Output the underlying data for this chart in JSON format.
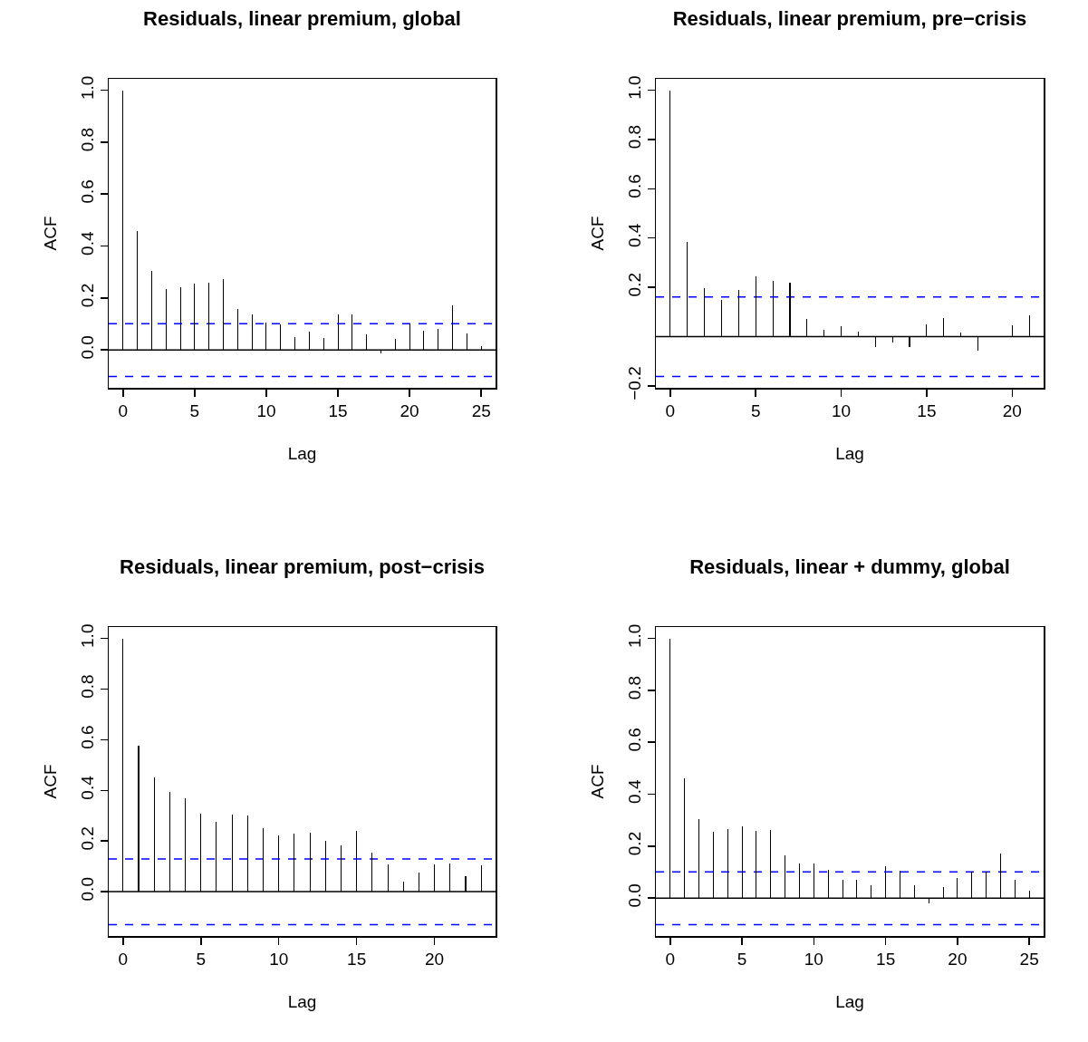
{
  "chart_data": [
    {
      "type": "bar",
      "title": "Residuals, linear premium, global",
      "xlabel": "Lag",
      "ylabel": "ACF",
      "color": "#000000",
      "x": [
        0,
        1,
        2,
        3,
        4,
        5,
        6,
        7,
        8,
        9,
        10,
        11,
        12,
        13,
        14,
        15,
        16,
        17,
        18,
        19,
        20,
        21,
        22,
        23,
        24,
        25
      ],
      "values": [
        1.0,
        0.456,
        0.304,
        0.235,
        0.242,
        0.254,
        0.258,
        0.274,
        0.157,
        0.136,
        0.107,
        0.098,
        0.049,
        0.072,
        0.047,
        0.137,
        0.135,
        0.061,
        -0.013,
        0.044,
        0.101,
        0.075,
        0.08,
        0.172,
        0.063,
        0.013
      ],
      "xlim": [
        -1,
        26
      ],
      "ylim": [
        -0.146,
        1.044
      ],
      "xticks": [
        0,
        5,
        10,
        15,
        20,
        25
      ],
      "yticks": [
        {
          "value": 0,
          "label": "0.0"
        },
        0.2,
        0.4,
        0.6,
        0.8,
        {
          "value": 1,
          "label": "1.0"
        }
      ],
      "ref_lines": [
        {
          "axis": "y",
          "value": 0,
          "color": "#000000",
          "line_style": "solid"
        },
        {
          "axis": "y",
          "value": 0.101,
          "color": "#0000ff",
          "line_style": "dashed"
        },
        {
          "axis": "y",
          "value": -0.102,
          "color": "#0000ff",
          "line_style": "dashed"
        }
      ],
      "grid": false
    },
    {
      "type": "bar",
      "title": "Residuals, linear premium, pre−crisis",
      "xlabel": "Lag",
      "ylabel": "ACF",
      "color": "#000000",
      "x": [
        0,
        1,
        2,
        3,
        4,
        5,
        6,
        7,
        8,
        9,
        10,
        11,
        12,
        13,
        14,
        15,
        16,
        17,
        18,
        19,
        20,
        21
      ],
      "values": [
        1.0,
        0.384,
        0.196,
        0.148,
        0.189,
        0.244,
        0.227,
        0.217,
        0.071,
        0.027,
        0.042,
        0.02,
        -0.044,
        -0.023,
        -0.043,
        0.049,
        0.074,
        0.016,
        -0.056,
        null,
        0.044,
        0.088
      ],
      "xlim": [
        -0.84,
        21.84
      ],
      "ylim": [
        -0.208,
        1.046
      ],
      "xticks": [
        0,
        5,
        10,
        15,
        20
      ],
      "yticks": [
        {
          "value": -0.2,
          "label": "−0.2"
        },
        0.2,
        0.4,
        0.6,
        0.8,
        {
          "value": 1,
          "label": "1.0"
        }
      ],
      "ref_lines": [
        {
          "axis": "y",
          "value": 0,
          "color": "#000000",
          "line_style": "solid"
        },
        {
          "axis": "y",
          "value": 0.161,
          "color": "#0000ff",
          "line_style": "dashed"
        },
        {
          "axis": "y",
          "value": -0.162,
          "color": "#0000ff",
          "line_style": "dashed"
        }
      ],
      "grid": false
    },
    {
      "type": "bar",
      "title": "Residuals, linear premium, post−crisis",
      "xlabel": "Lag",
      "ylabel": "ACF",
      "color": "#000000",
      "x": [
        0,
        1,
        2,
        3,
        4,
        5,
        6,
        7,
        8,
        9,
        10,
        11,
        12,
        13,
        14,
        15,
        16,
        17,
        18,
        19,
        20,
        21,
        22,
        23
      ],
      "values": [
        1.0,
        0.578,
        0.45,
        0.395,
        0.368,
        0.308,
        0.275,
        0.305,
        0.3,
        0.25,
        0.222,
        0.228,
        0.232,
        0.202,
        0.182,
        0.239,
        0.153,
        0.108,
        0.039,
        0.076,
        0.108,
        0.11,
        0.061,
        0.105
      ],
      "xlim": [
        -0.92,
        23.92
      ],
      "ylim": [
        -0.175,
        1.045
      ],
      "xticks": [
        0,
        5,
        10,
        15,
        20
      ],
      "yticks": [
        {
          "value": 0,
          "label": "0.0"
        },
        0.2,
        0.4,
        0.6,
        0.8,
        {
          "value": 1,
          "label": "1.0"
        }
      ],
      "ref_lines": [
        {
          "axis": "y",
          "value": 0,
          "color": "#000000",
          "line_style": "solid"
        },
        {
          "axis": "y",
          "value": 0.129,
          "color": "#0000ff",
          "line_style": "dashed"
        },
        {
          "axis": "y",
          "value": -0.13,
          "color": "#0000ff",
          "line_style": "dashed"
        }
      ],
      "grid": false
    },
    {
      "type": "bar",
      "title": "Residuals, linear + dummy, global",
      "xlabel": "Lag",
      "ylabel": "ACF",
      "color": "#000000",
      "x": [
        0,
        1,
        2,
        3,
        4,
        5,
        6,
        7,
        8,
        9,
        10,
        11,
        12,
        13,
        14,
        15,
        16,
        17,
        18,
        19,
        20,
        21,
        22,
        23,
        24,
        25
      ],
      "values": [
        1.0,
        0.462,
        0.304,
        0.254,
        0.265,
        0.275,
        0.26,
        0.262,
        0.166,
        0.132,
        0.132,
        0.109,
        0.07,
        0.072,
        0.048,
        0.123,
        0.104,
        0.051,
        -0.019,
        0.042,
        0.077,
        0.101,
        0.101,
        0.172,
        0.072,
        0.028
      ],
      "xlim": [
        -1,
        26
      ],
      "ylim": [
        -0.146,
        1.044
      ],
      "xticks": [
        0,
        5,
        10,
        15,
        20,
        25
      ],
      "yticks": [
        {
          "value": 0,
          "label": "0.0"
        },
        0.2,
        0.4,
        0.6,
        0.8,
        {
          "value": 1,
          "label": "1.0"
        }
      ],
      "ref_lines": [
        {
          "axis": "y",
          "value": 0,
          "color": "#000000",
          "line_style": "solid"
        },
        {
          "axis": "y",
          "value": 0.101,
          "color": "#0000ff",
          "line_style": "dashed"
        },
        {
          "axis": "y",
          "value": -0.102,
          "color": "#0000ff",
          "line_style": "dashed"
        }
      ],
      "grid": false
    }
  ]
}
